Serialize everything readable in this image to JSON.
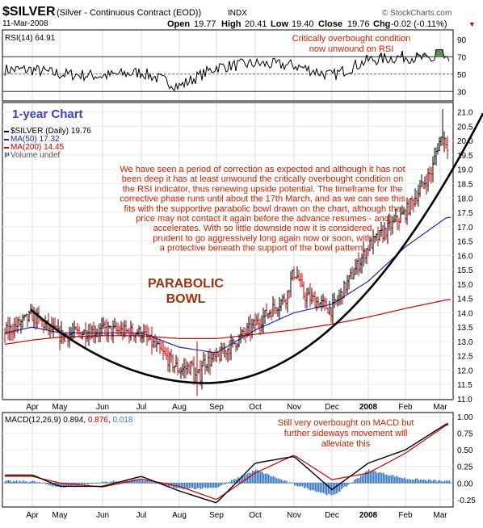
{
  "header": {
    "symbol": "$SILVER",
    "description": "(Silver - Continuous Contract (EOD))",
    "exchange": "INDX",
    "date": "11-Mar-2008",
    "open_label": "Open",
    "open": "19.77",
    "high_label": "High",
    "high": "20.41",
    "low_label": "Low",
    "low": "19.40",
    "close_label": "Close",
    "close": "19.76",
    "chg_label": "Chg",
    "chg": "-0.02 (-0.11%)",
    "chg_arrow": "▼",
    "watermark": "© StockCharts.com"
  },
  "rsi_panel": {
    "label": "RSI(14)",
    "value": "64.91",
    "annotation": [
      "Critically overbought condition",
      "now unwound on RSI"
    ],
    "ticks": [
      "90",
      "70",
      "50",
      "30"
    ]
  },
  "price_panel": {
    "chart_title": "1-year Chart",
    "legend": [
      {
        "label": "$SILVER (Daily) 19.76",
        "color": "#000000"
      },
      {
        "label": "MA(50) 17.32",
        "color": "#1f2fa8"
      },
      {
        "label": "MA(200) 14.45",
        "color": "#cc0000"
      },
      {
        "label": "Volume undef",
        "color": "#555555"
      }
    ],
    "commentary": [
      "We have seen a period of correction as expected and although it has not",
      "been deep it has at least unwound the critically overbought condition on",
      "the RSI indicator, thus renewing upside potential. The timeframe for the",
      "corrective phase runs until about the 17th March, and as we can see this",
      "fits with the supportive parabolic bowl drawn on the chart, although the",
      "price may not contact it again before the advance resumes - and",
      "accelerates. With so little downside now it is considered",
      "prudent to go aggressively long again now or soon, with",
      "a protective beneath the support of the bowl pattern."
    ],
    "bowl_label": [
      "PARABOLIC",
      "BOWL"
    ],
    "y_ticks": [
      "21.0",
      "20.5",
      "20.0",
      "19.5",
      "19.0",
      "18.5",
      "18.0",
      "17.5",
      "17.0",
      "16.5",
      "16.0",
      "15.5",
      "15.0",
      "14.5",
      "14.0",
      "13.5",
      "13.0",
      "12.5",
      "12.0",
      "11.5",
      "11.0"
    ]
  },
  "macd_panel": {
    "label": "MACD(12,26,9)",
    "macd": "0.894",
    "signal": "0.876",
    "hist": "0.018",
    "annotation": [
      "Still very overbought on MACD but",
      "further sideways movement will",
      "alleviate this"
    ],
    "ticks": [
      "1.00",
      "0.75",
      "0.50",
      "0.25",
      "0.00",
      "-0.25"
    ]
  },
  "x_axis_labels": [
    "Apr",
    "May",
    "Jun",
    "Jul",
    "Aug",
    "Sep",
    "Oct",
    "Nov",
    "Dec",
    "2008",
    "Feb",
    "Mar"
  ],
  "colors": {
    "price_bar": "#000000",
    "up_bar": "#000000",
    "down_bar": "#cc0000",
    "ma50": "#1f2fa8",
    "ma200": "#cc0000",
    "annotation": "#cc2200",
    "chart_title": "#3f3fbf",
    "rsi_fill": "#5e8e5e",
    "macd_hist": "#3a78c2",
    "macd_signal": "#cc0000"
  },
  "chart_data": [
    {
      "type": "line",
      "title": "RSI(14)",
      "ylim": [
        20,
        100
      ],
      "reference_lines": [
        70,
        50,
        30
      ],
      "x": [
        "Apr-07",
        "May-07",
        "Jun-07",
        "Jul-07",
        "Aug-07",
        "Sep-07",
        "Oct-07",
        "Nov-07",
        "Dec-07",
        "Jan-08",
        "Feb-08",
        "Mar-08"
      ],
      "series": [
        {
          "name": "RSI(14)",
          "values": [
            55,
            50,
            48,
            52,
            36,
            58,
            62,
            60,
            48,
            66,
            70,
            64.91
          ]
        }
      ]
    },
    {
      "type": "line",
      "title": "$SILVER (Daily)",
      "ylim": [
        11.0,
        21.3
      ],
      "x": [
        "Mar-07",
        "Apr-07",
        "May-07",
        "Jun-07",
        "Jul-07",
        "Aug-07",
        "Sep-07",
        "Oct-07",
        "Nov-07",
        "Dec-07",
        "Jan-08",
        "Feb-08",
        "Mar-08"
      ],
      "series": [
        {
          "name": "$SILVER (Daily)",
          "values": [
            13.3,
            13.9,
            13.2,
            13.4,
            13.3,
            12.0,
            12.4,
            13.6,
            14.8,
            14.1,
            16.3,
            17.5,
            19.76
          ]
        },
        {
          "name": "MA(50)",
          "values": [
            13.3,
            13.5,
            13.3,
            13.3,
            13.3,
            12.8,
            12.6,
            13.4,
            14.0,
            14.3,
            15.1,
            16.3,
            17.32
          ]
        },
        {
          "name": "MA(200)",
          "values": [
            12.9,
            13.05,
            13.15,
            13.2,
            13.2,
            13.1,
            13.1,
            13.25,
            13.4,
            13.6,
            13.85,
            14.15,
            14.45
          ]
        }
      ]
    },
    {
      "type": "line",
      "title": "MACD(12,26,9)",
      "ylim": [
        -0.35,
        1.05
      ],
      "x": [
        "Apr-07",
        "May-07",
        "Jun-07",
        "Jul-07",
        "Aug-07",
        "Sep-07",
        "Oct-07",
        "Nov-07",
        "Dec-07",
        "Jan-08",
        "Feb-08",
        "Mar-08"
      ],
      "series": [
        {
          "name": "MACD",
          "values": [
            0.12,
            -0.05,
            -0.05,
            0.1,
            -0.12,
            -0.3,
            0.3,
            0.4,
            -0.1,
            0.3,
            0.5,
            0.894
          ]
        },
        {
          "name": "Signal",
          "values": [
            0.1,
            0.0,
            -0.06,
            0.06,
            -0.05,
            -0.25,
            0.15,
            0.42,
            0.05,
            0.15,
            0.45,
            0.876
          ]
        }
      ]
    }
  ]
}
